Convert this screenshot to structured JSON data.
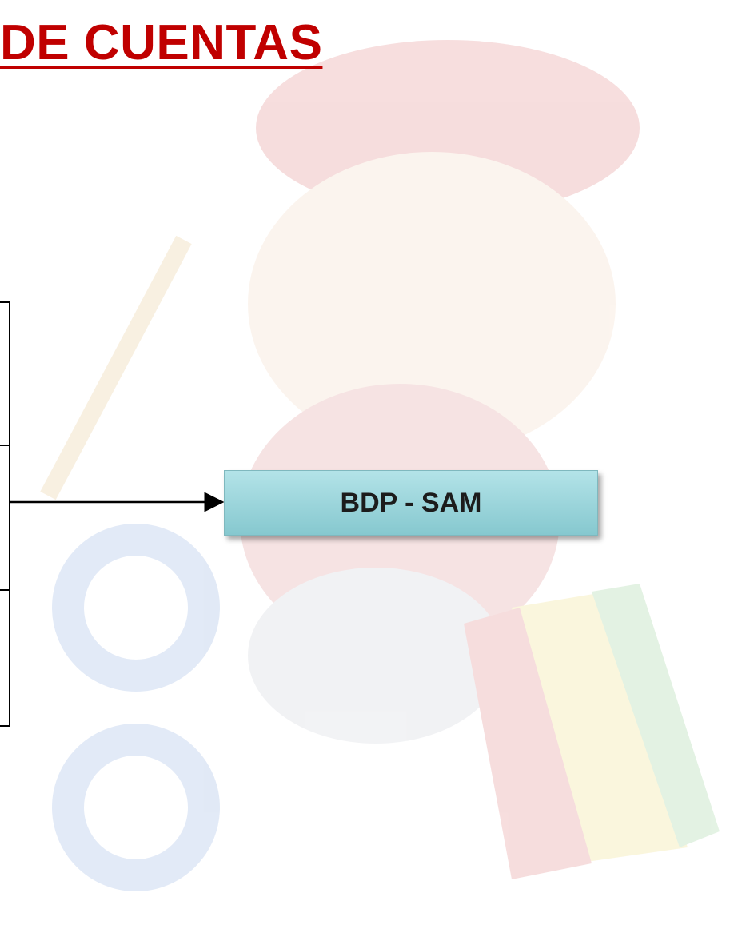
{
  "header": {
    "title": "DE CUENTAS"
  },
  "nodes": [
    {
      "label": "BDP - SAM"
    }
  ]
}
